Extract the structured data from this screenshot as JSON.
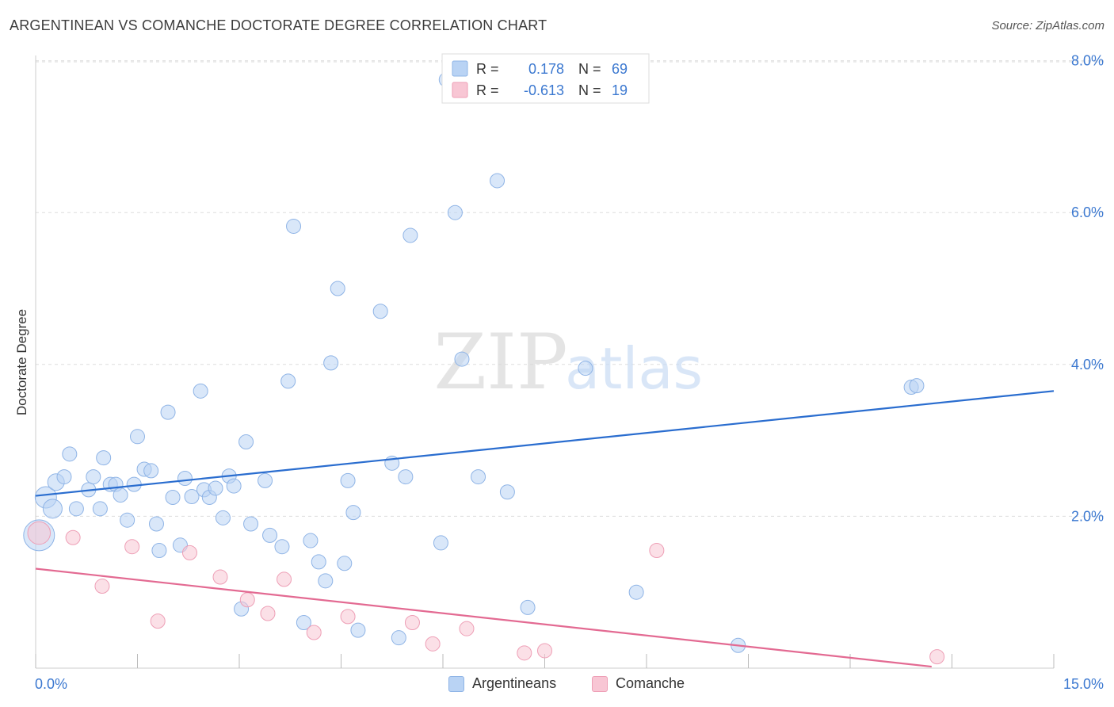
{
  "header": {
    "title": "ARGENTINEAN VS COMANCHE DOCTORATE DEGREE CORRELATION CHART",
    "source": "Source: ZipAtlas.com"
  },
  "watermark": {
    "zip": "ZIP",
    "atlas": "atlas"
  },
  "colors": {
    "blue_fill": "#b9d3f4",
    "blue_stroke": "#8fb4e6",
    "blue_line": "#2a6dcf",
    "pink_fill": "#f8c6d4",
    "pink_stroke": "#ee9fb6",
    "pink_line": "#e36a92",
    "axis_label": "#3b78d0",
    "grid": "#dedede"
  },
  "legend_top": {
    "rows": [
      {
        "r_label": "R =",
        "r_value": "0.178",
        "n_label": "N =",
        "n_value": "69"
      },
      {
        "r_label": "R =",
        "r_value": "-0.613",
        "n_label": "N =",
        "n_value": "19"
      }
    ]
  },
  "legend_bottom": {
    "items": [
      "Argentineans",
      "Comanche"
    ]
  },
  "chart_data": {
    "type": "scatter",
    "ylabel": "Doctorate Degree",
    "xlim": [
      0,
      15
    ],
    "ylim": [
      0,
      8.2
    ],
    "x_tick_labels": [
      "0.0%",
      "15.0%"
    ],
    "y_ticks": [
      2,
      4,
      6,
      8
    ],
    "y_tick_labels": [
      "2.0%",
      "4.0%",
      "6.0%",
      "8.0%"
    ],
    "grid": "horizontal dashed",
    "series": [
      {
        "name": "Argentineans",
        "trend": [
          [
            0,
            2.27
          ],
          [
            15,
            3.65
          ]
        ],
        "points": [
          [
            0.05,
            1.75,
            2.6
          ],
          [
            0.15,
            2.25,
            1.8
          ],
          [
            0.25,
            2.1,
            1.6
          ],
          [
            0.3,
            2.45,
            1.4
          ],
          [
            0.42,
            2.52,
            1.2
          ],
          [
            0.5,
            2.82,
            1.2
          ],
          [
            0.6,
            2.1,
            1.2
          ],
          [
            0.78,
            2.35,
            1.2
          ],
          [
            0.85,
            2.52,
            1.2
          ],
          [
            0.95,
            2.1,
            1.2
          ],
          [
            1.0,
            2.77,
            1.2
          ],
          [
            1.1,
            2.42,
            1.2
          ],
          [
            1.18,
            2.42,
            1.2
          ],
          [
            1.25,
            2.28,
            1.2
          ],
          [
            1.35,
            1.95,
            1.2
          ],
          [
            1.45,
            2.42,
            1.2
          ],
          [
            1.5,
            3.05,
            1.2
          ],
          [
            1.6,
            2.62,
            1.2
          ],
          [
            1.7,
            2.6,
            1.2
          ],
          [
            1.78,
            1.9,
            1.2
          ],
          [
            1.82,
            1.55,
            1.2
          ],
          [
            1.95,
            3.37,
            1.2
          ],
          [
            2.02,
            2.25,
            1.2
          ],
          [
            2.13,
            1.62,
            1.2
          ],
          [
            2.2,
            2.5,
            1.2
          ],
          [
            2.3,
            2.26,
            1.2
          ],
          [
            2.43,
            3.65,
            1.2
          ],
          [
            2.48,
            2.35,
            1.2
          ],
          [
            2.56,
            2.25,
            1.2
          ],
          [
            2.65,
            2.37,
            1.2
          ],
          [
            2.76,
            1.98,
            1.2
          ],
          [
            2.85,
            2.53,
            1.2
          ],
          [
            2.92,
            2.4,
            1.2
          ],
          [
            3.1,
            2.98,
            1.2
          ],
          [
            3.17,
            1.9,
            1.2
          ],
          [
            3.03,
            0.78,
            1.2
          ],
          [
            3.38,
            2.47,
            1.2
          ],
          [
            3.45,
            1.75,
            1.2
          ],
          [
            3.63,
            1.6,
            1.2
          ],
          [
            3.72,
            3.78,
            1.2
          ],
          [
            3.8,
            5.82,
            1.2
          ],
          [
            3.95,
            0.6,
            1.2
          ],
          [
            4.05,
            1.68,
            1.2
          ],
          [
            4.17,
            1.4,
            1.2
          ],
          [
            4.27,
            1.15,
            1.2
          ],
          [
            4.35,
            4.02,
            1.2
          ],
          [
            4.45,
            5.0,
            1.2
          ],
          [
            4.55,
            1.38,
            1.2
          ],
          [
            4.6,
            2.47,
            1.2
          ],
          [
            4.68,
            2.05,
            1.2
          ],
          [
            4.75,
            0.5,
            1.2
          ],
          [
            5.08,
            4.7,
            1.2
          ],
          [
            5.25,
            2.7,
            1.2
          ],
          [
            5.35,
            0.4,
            1.2
          ],
          [
            5.45,
            2.52,
            1.2
          ],
          [
            5.52,
            5.7,
            1.2
          ],
          [
            5.97,
            1.65,
            1.2
          ],
          [
            6.05,
            7.75,
            1.2
          ],
          [
            6.18,
            6.0,
            1.2
          ],
          [
            6.28,
            4.07,
            1.2
          ],
          [
            6.52,
            2.52,
            1.2
          ],
          [
            6.8,
            6.42,
            1.2
          ],
          [
            6.95,
            2.32,
            1.2
          ],
          [
            7.25,
            0.8,
            1.2
          ],
          [
            8.1,
            3.95,
            1.2
          ],
          [
            8.85,
            1.0,
            1.2
          ],
          [
            10.35,
            0.3,
            1.2
          ],
          [
            12.9,
            3.7,
            1.2
          ],
          [
            12.98,
            3.72,
            1.2
          ]
        ]
      },
      {
        "name": "Comanche",
        "trend": [
          [
            0,
            1.31
          ],
          [
            13.2,
            0.02
          ]
        ],
        "points": [
          [
            0.05,
            1.78,
            1.9
          ],
          [
            0.55,
            1.72,
            1.2
          ],
          [
            0.98,
            1.08,
            1.2
          ],
          [
            1.42,
            1.6,
            1.2
          ],
          [
            1.8,
            0.62,
            1.2
          ],
          [
            2.27,
            1.52,
            1.2
          ],
          [
            2.72,
            1.2,
            1.2
          ],
          [
            3.12,
            0.9,
            1.2
          ],
          [
            3.42,
            0.72,
            1.2
          ],
          [
            3.66,
            1.17,
            1.2
          ],
          [
            4.1,
            0.47,
            1.2
          ],
          [
            4.6,
            0.68,
            1.2
          ],
          [
            5.55,
            0.6,
            1.2
          ],
          [
            5.85,
            0.32,
            1.2
          ],
          [
            6.35,
            0.52,
            1.2
          ],
          [
            7.2,
            0.2,
            1.2
          ],
          [
            7.5,
            0.23,
            1.2
          ],
          [
            9.15,
            1.55,
            1.2
          ],
          [
            13.28,
            0.15,
            1.2
          ]
        ]
      }
    ]
  }
}
